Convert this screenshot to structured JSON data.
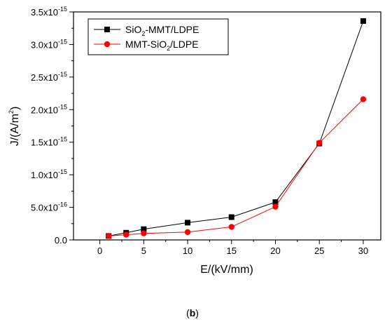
{
  "chart_data": {
    "type": "line",
    "x": [
      1,
      3,
      5,
      10,
      15,
      20,
      25,
      30
    ],
    "series": [
      {
        "name_parts": [
          "SiO",
          "2",
          "-MMT/LDPE"
        ],
        "color": "#000000",
        "marker": "square",
        "values": [
          6e-17,
          1.1e-16,
          1.65e-16,
          2.65e-16,
          3.5e-16,
          5.8e-16,
          1.48e-15,
          3.36e-15
        ]
      },
      {
        "name_parts": [
          "MMT-SiO",
          "2",
          "/LDPE"
        ],
        "color": "#ff0000",
        "marker": "circle",
        "values": [
          6e-17,
          8e-17,
          1e-16,
          1.2e-16,
          2e-16,
          5.1e-16,
          1.49e-15,
          2.16e-15
        ]
      }
    ],
    "xlabel": "E/(kV/mm)",
    "ylabel_parts": [
      "J/(A/m",
      "2",
      ")"
    ],
    "xlim": [
      -3,
      32
    ],
    "ylim": [
      0,
      3.5e-15
    ],
    "xticks": [
      0,
      5,
      10,
      15,
      20,
      25,
      30
    ],
    "yticks": [
      {
        "value": 0,
        "mantissa": "0.0",
        "exponent": ""
      },
      {
        "value": 5e-16,
        "mantissa": "5.0x10",
        "exponent": "-16"
      },
      {
        "value": 1e-15,
        "mantissa": "1.0x10",
        "exponent": "-15"
      },
      {
        "value": 1.5e-15,
        "mantissa": "1.5x10",
        "exponent": "-15"
      },
      {
        "value": 2e-15,
        "mantissa": "2.0x10",
        "exponent": "-15"
      },
      {
        "value": 2.5e-15,
        "mantissa": "2.5x10",
        "exponent": "-15"
      },
      {
        "value": 3e-15,
        "mantissa": "3.0x10",
        "exponent": "-15"
      },
      {
        "value": 3.5e-15,
        "mantissa": "3.5x10",
        "exponent": "-15"
      }
    ],
    "legend_position": "top-left",
    "grid": false
  },
  "caption": {
    "open": "(",
    "letter": "b",
    "close": ")"
  }
}
